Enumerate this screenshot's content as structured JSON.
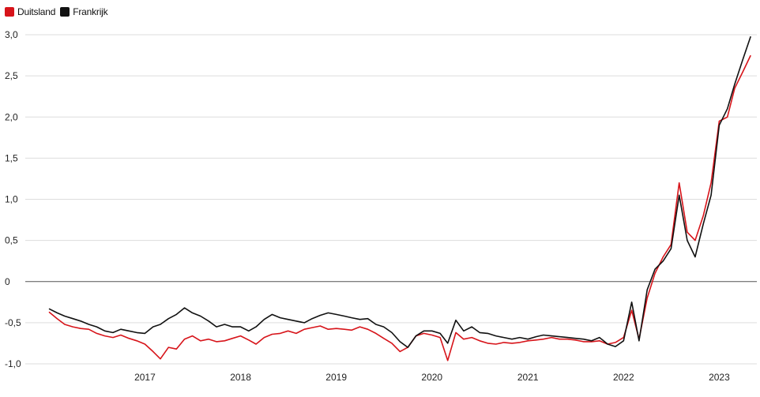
{
  "legend": {
    "items": [
      {
        "label": "Duitsland",
        "color": "#d7141a"
      },
      {
        "label": "Frankrijk",
        "color": "#111111"
      }
    ]
  },
  "chart_data": {
    "type": "line",
    "title": "",
    "xlabel": "",
    "ylabel": "",
    "ylim": [
      -1.0,
      3.0
    ],
    "xlim": [
      "2016-01-01",
      "2023-03-01"
    ],
    "y_ticks": [
      "3,0",
      "2,5",
      "2,0",
      "1,5",
      "1,0",
      "0,5",
      "0",
      "-0,5",
      "-1,0"
    ],
    "y_tick_values": [
      3.0,
      2.5,
      2.0,
      1.5,
      1.0,
      0.5,
      0,
      -0.5,
      -1.0
    ],
    "x_ticks": [
      "2017",
      "2018",
      "2019",
      "2020",
      "2021",
      "2022",
      "2023"
    ],
    "x_tick_values": [
      "2017-01-01",
      "2018-01-01",
      "2019-01-01",
      "2020-01-01",
      "2021-01-01",
      "2022-01-01",
      "2023-01-01"
    ],
    "grid": true,
    "legend_position": "top-left",
    "series": [
      {
        "name": "Duitsland",
        "color": "#d7141a",
        "points": [
          [
            "2016-01-01",
            -0.37
          ],
          [
            "2016-02-01",
            -0.45
          ],
          [
            "2016-03-01",
            -0.52
          ],
          [
            "2016-04-01",
            -0.55
          ],
          [
            "2016-05-01",
            -0.57
          ],
          [
            "2016-06-01",
            -0.58
          ],
          [
            "2016-07-01",
            -0.63
          ],
          [
            "2016-08-01",
            -0.66
          ],
          [
            "2016-09-01",
            -0.68
          ],
          [
            "2016-10-01",
            -0.65
          ],
          [
            "2016-11-01",
            -0.69
          ],
          [
            "2016-12-01",
            -0.72
          ],
          [
            "2017-01-01",
            -0.76
          ],
          [
            "2017-02-01",
            -0.85
          ],
          [
            "2017-03-01",
            -0.94
          ],
          [
            "2017-04-01",
            -0.8
          ],
          [
            "2017-05-01",
            -0.82
          ],
          [
            "2017-06-01",
            -0.7
          ],
          [
            "2017-07-01",
            -0.66
          ],
          [
            "2017-08-01",
            -0.72
          ],
          [
            "2017-09-01",
            -0.7
          ],
          [
            "2017-10-01",
            -0.73
          ],
          [
            "2017-11-01",
            -0.72
          ],
          [
            "2017-12-01",
            -0.69
          ],
          [
            "2018-01-01",
            -0.66
          ],
          [
            "2018-02-01",
            -0.71
          ],
          [
            "2018-03-01",
            -0.76
          ],
          [
            "2018-04-01",
            -0.68
          ],
          [
            "2018-05-01",
            -0.64
          ],
          [
            "2018-06-01",
            -0.63
          ],
          [
            "2018-07-01",
            -0.6
          ],
          [
            "2018-08-01",
            -0.63
          ],
          [
            "2018-09-01",
            -0.58
          ],
          [
            "2018-10-01",
            -0.56
          ],
          [
            "2018-11-01",
            -0.54
          ],
          [
            "2018-12-01",
            -0.58
          ],
          [
            "2019-01-01",
            -0.57
          ],
          [
            "2019-02-01",
            -0.58
          ],
          [
            "2019-03-01",
            -0.59
          ],
          [
            "2019-04-01",
            -0.55
          ],
          [
            "2019-05-01",
            -0.58
          ],
          [
            "2019-06-01",
            -0.63
          ],
          [
            "2019-07-01",
            -0.69
          ],
          [
            "2019-08-01",
            -0.75
          ],
          [
            "2019-09-01",
            -0.85
          ],
          [
            "2019-10-01",
            -0.8
          ],
          [
            "2019-11-01",
            -0.66
          ],
          [
            "2019-12-01",
            -0.63
          ],
          [
            "2020-01-01",
            -0.65
          ],
          [
            "2020-02-01",
            -0.68
          ],
          [
            "2020-03-01",
            -0.96
          ],
          [
            "2020-04-01",
            -0.62
          ],
          [
            "2020-05-01",
            -0.7
          ],
          [
            "2020-06-01",
            -0.68
          ],
          [
            "2020-07-01",
            -0.72
          ],
          [
            "2020-08-01",
            -0.75
          ],
          [
            "2020-09-01",
            -0.76
          ],
          [
            "2020-10-01",
            -0.74
          ],
          [
            "2020-11-01",
            -0.75
          ],
          [
            "2020-12-01",
            -0.74
          ],
          [
            "2021-01-01",
            -0.72
          ],
          [
            "2021-02-01",
            -0.71
          ],
          [
            "2021-03-01",
            -0.7
          ],
          [
            "2021-04-01",
            -0.68
          ],
          [
            "2021-05-01",
            -0.7
          ],
          [
            "2021-06-01",
            -0.7
          ],
          [
            "2021-07-01",
            -0.71
          ],
          [
            "2021-08-01",
            -0.73
          ],
          [
            "2021-09-01",
            -0.73
          ],
          [
            "2021-10-01",
            -0.72
          ],
          [
            "2021-11-01",
            -0.76
          ],
          [
            "2021-12-01",
            -0.74
          ],
          [
            "2022-01-01",
            -0.68
          ],
          [
            "2022-02-01",
            -0.35
          ],
          [
            "2022-03-01",
            -0.7
          ],
          [
            "2022-04-01",
            -0.2
          ],
          [
            "2022-05-01",
            0.1
          ],
          [
            "2022-06-01",
            0.3
          ],
          [
            "2022-07-01",
            0.45
          ],
          [
            "2022-08-01",
            1.2
          ],
          [
            "2022-09-01",
            0.6
          ],
          [
            "2022-10-01",
            0.5
          ],
          [
            "2022-11-01",
            0.8
          ],
          [
            "2022-12-01",
            1.2
          ],
          [
            "2023-01-01",
            1.95
          ],
          [
            "2023-02-01",
            2.0
          ],
          [
            "2023-03-01",
            2.35
          ],
          [
            "2023-04-01",
            2.55
          ],
          [
            "2023-05-01",
            2.75
          ]
        ]
      },
      {
        "name": "Frankrijk",
        "color": "#111111",
        "points": [
          [
            "2016-01-01",
            -0.33
          ],
          [
            "2016-02-01",
            -0.38
          ],
          [
            "2016-03-01",
            -0.42
          ],
          [
            "2016-04-01",
            -0.45
          ],
          [
            "2016-05-01",
            -0.48
          ],
          [
            "2016-06-01",
            -0.52
          ],
          [
            "2016-07-01",
            -0.55
          ],
          [
            "2016-08-01",
            -0.6
          ],
          [
            "2016-09-01",
            -0.62
          ],
          [
            "2016-10-01",
            -0.58
          ],
          [
            "2016-11-01",
            -0.6
          ],
          [
            "2016-12-01",
            -0.62
          ],
          [
            "2017-01-01",
            -0.63
          ],
          [
            "2017-02-01",
            -0.55
          ],
          [
            "2017-03-01",
            -0.52
          ],
          [
            "2017-04-01",
            -0.45
          ],
          [
            "2017-05-01",
            -0.4
          ],
          [
            "2017-06-01",
            -0.32
          ],
          [
            "2017-07-01",
            -0.38
          ],
          [
            "2017-08-01",
            -0.42
          ],
          [
            "2017-09-01",
            -0.48
          ],
          [
            "2017-10-01",
            -0.55
          ],
          [
            "2017-11-01",
            -0.52
          ],
          [
            "2017-12-01",
            -0.55
          ],
          [
            "2018-01-01",
            -0.55
          ],
          [
            "2018-02-01",
            -0.6
          ],
          [
            "2018-03-01",
            -0.55
          ],
          [
            "2018-04-01",
            -0.46
          ],
          [
            "2018-05-01",
            -0.4
          ],
          [
            "2018-06-01",
            -0.44
          ],
          [
            "2018-07-01",
            -0.46
          ],
          [
            "2018-08-01",
            -0.48
          ],
          [
            "2018-09-01",
            -0.5
          ],
          [
            "2018-10-01",
            -0.45
          ],
          [
            "2018-11-01",
            -0.41
          ],
          [
            "2018-12-01",
            -0.38
          ],
          [
            "2019-01-01",
            -0.4
          ],
          [
            "2019-02-01",
            -0.42
          ],
          [
            "2019-03-01",
            -0.44
          ],
          [
            "2019-04-01",
            -0.46
          ],
          [
            "2019-05-01",
            -0.45
          ],
          [
            "2019-06-01",
            -0.52
          ],
          [
            "2019-07-01",
            -0.55
          ],
          [
            "2019-08-01",
            -0.62
          ],
          [
            "2019-09-01",
            -0.73
          ],
          [
            "2019-10-01",
            -0.8
          ],
          [
            "2019-11-01",
            -0.66
          ],
          [
            "2019-12-01",
            -0.6
          ],
          [
            "2020-01-01",
            -0.6
          ],
          [
            "2020-02-01",
            -0.63
          ],
          [
            "2020-03-01",
            -0.75
          ],
          [
            "2020-04-01",
            -0.47
          ],
          [
            "2020-05-01",
            -0.6
          ],
          [
            "2020-06-01",
            -0.55
          ],
          [
            "2020-07-01",
            -0.62
          ],
          [
            "2020-08-01",
            -0.63
          ],
          [
            "2020-09-01",
            -0.66
          ],
          [
            "2020-10-01",
            -0.68
          ],
          [
            "2020-11-01",
            -0.7
          ],
          [
            "2020-12-01",
            -0.68
          ],
          [
            "2021-01-01",
            -0.7
          ],
          [
            "2021-02-01",
            -0.67
          ],
          [
            "2021-03-01",
            -0.65
          ],
          [
            "2021-04-01",
            -0.66
          ],
          [
            "2021-05-01",
            -0.67
          ],
          [
            "2021-06-01",
            -0.68
          ],
          [
            "2021-07-01",
            -0.69
          ],
          [
            "2021-08-01",
            -0.7
          ],
          [
            "2021-09-01",
            -0.72
          ],
          [
            "2021-10-01",
            -0.68
          ],
          [
            "2021-11-01",
            -0.76
          ],
          [
            "2021-12-01",
            -0.79
          ],
          [
            "2022-01-01",
            -0.72
          ],
          [
            "2022-02-01",
            -0.25
          ],
          [
            "2022-03-01",
            -0.72
          ],
          [
            "2022-04-01",
            -0.1
          ],
          [
            "2022-05-01",
            0.15
          ],
          [
            "2022-06-01",
            0.25
          ],
          [
            "2022-07-01",
            0.4
          ],
          [
            "2022-08-01",
            1.05
          ],
          [
            "2022-09-01",
            0.5
          ],
          [
            "2022-10-01",
            0.3
          ],
          [
            "2022-11-01",
            0.7
          ],
          [
            "2022-12-01",
            1.05
          ],
          [
            "2023-01-01",
            1.9
          ],
          [
            "2023-02-01",
            2.1
          ],
          [
            "2023-03-01",
            2.4
          ],
          [
            "2023-04-01",
            2.7
          ],
          [
            "2023-05-01",
            2.98
          ]
        ]
      }
    ]
  }
}
